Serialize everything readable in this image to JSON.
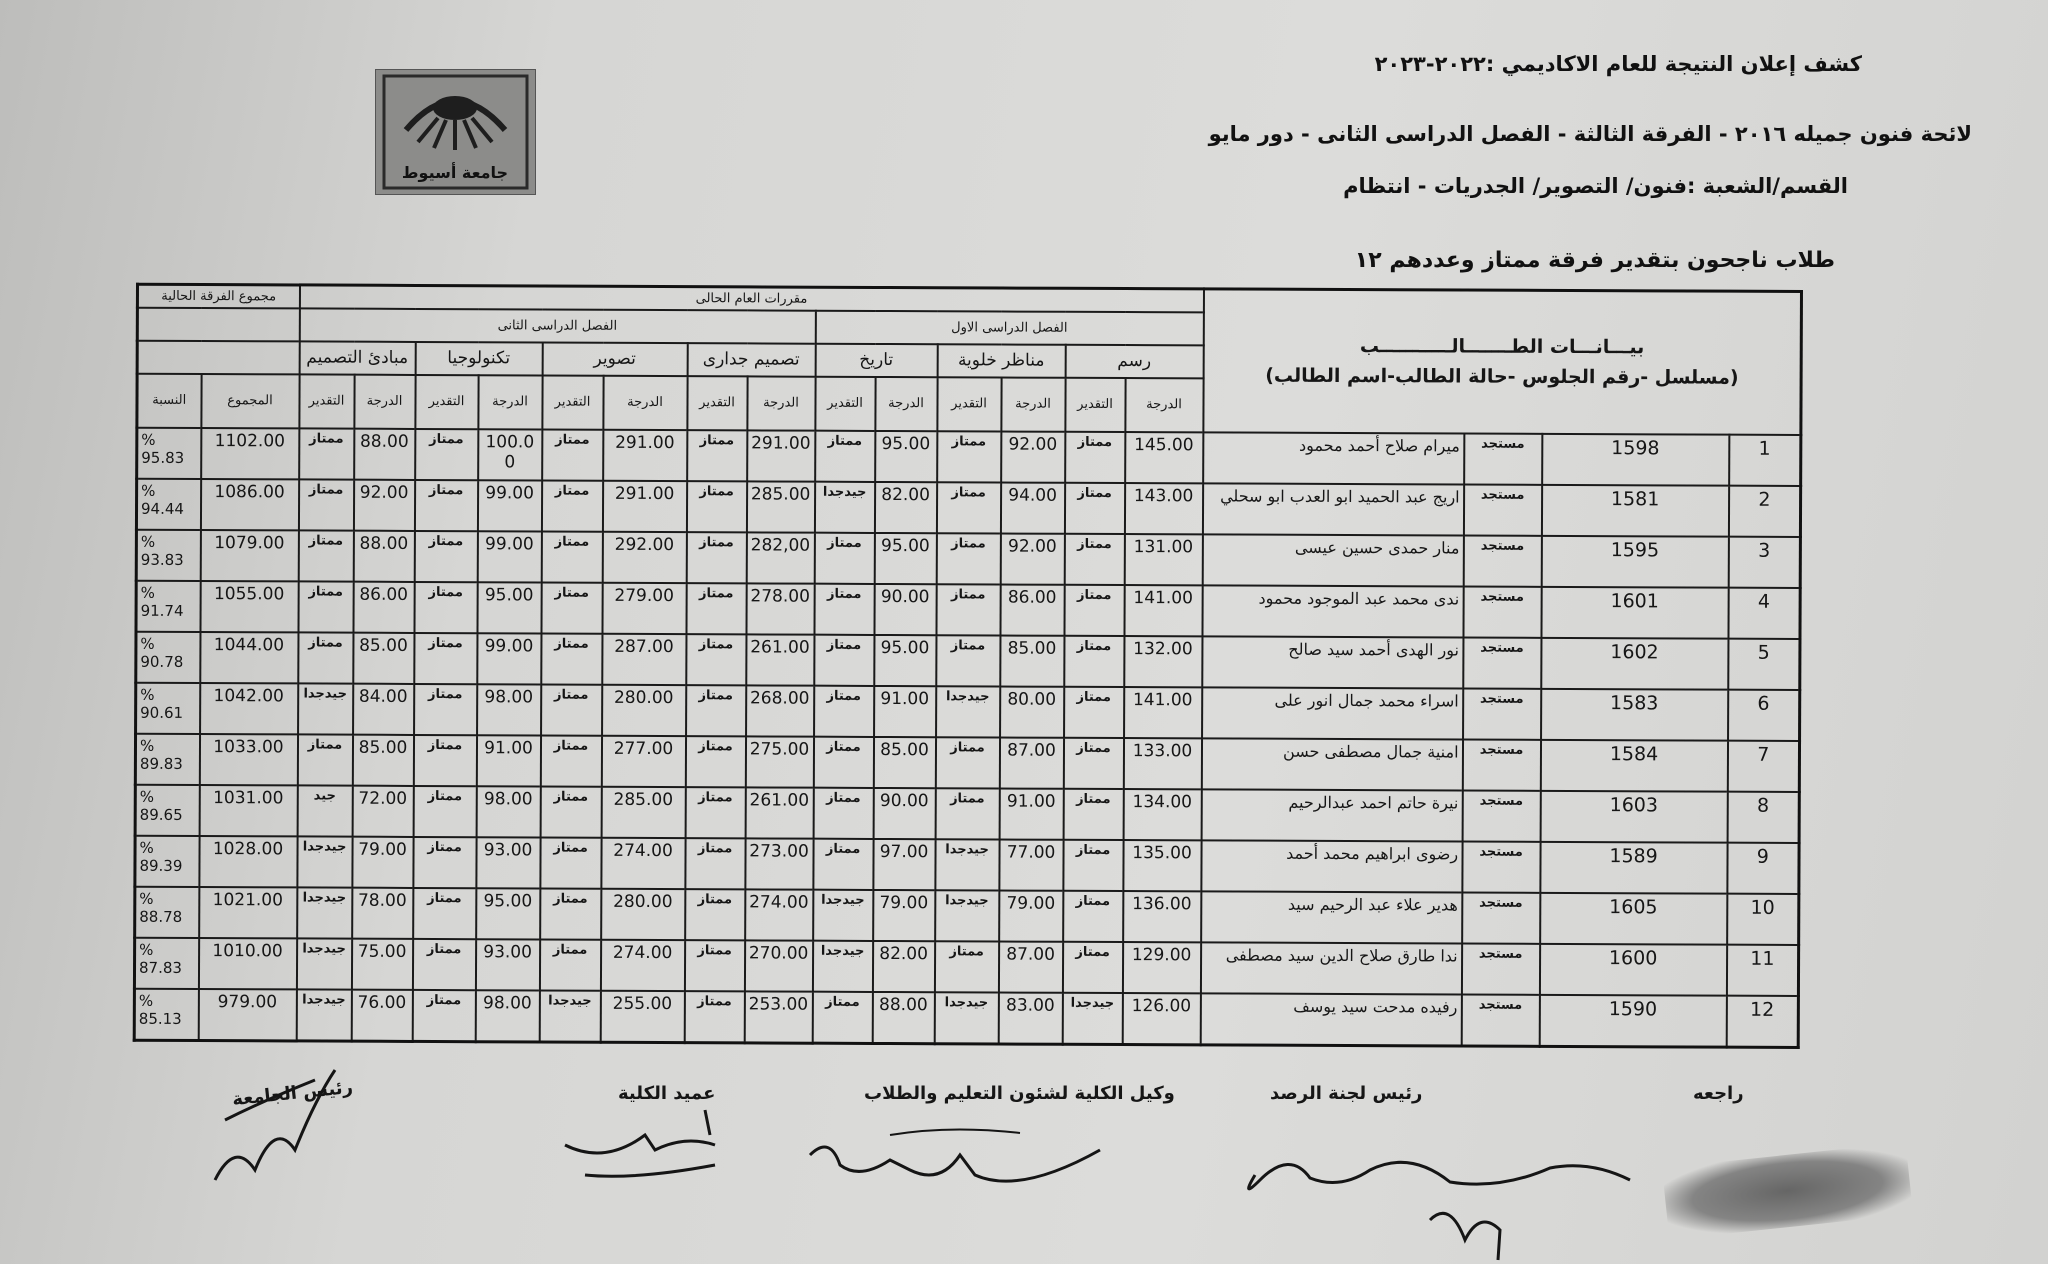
{
  "header": {
    "title": "كشف إعلان النتيجة للعام  الاكاديمي :٢٠٢٢-٢٠٢٣",
    "line2": "لائحة فنون جميله ٢٠١٦ - الفرقة الثالثة - الفصل الدراسى الثانى - دور مايو",
    "line3": "القسم/الشعبة :فنون/ التصوير/ الجدريات - انتظام",
    "line4": "طلاب ناجحون بتقدير فرقة ممتاز وعددهم ١٢"
  },
  "logo": {
    "text": "جامعة أسيوط"
  },
  "table": {
    "student_header": "بيـــانـــات الطـــــــالـــــــــــب",
    "student_subheader": "(مسلسل -رقم الجلوس -حالة الطالب-اسم الطالب)",
    "current_year_courses": "مقررات العام الحالى",
    "current_total": "مجموع الفرقة الحالية",
    "semester1": "الفصل الدراسى الاول",
    "semester2": "الفصل الدراسى الثانى",
    "courses": [
      "رسم",
      "مناظر خلوية",
      "تاريخ",
      "تصميم جدارى",
      "تصوير",
      "تكنولوجيا",
      "مبادئ التصميم"
    ],
    "grade_label": "الدرجة",
    "estimate_label": "التقدير",
    "total_label": "المجموع",
    "percent_label": "النسبة"
  },
  "rows": [
    {
      "serial": "1",
      "seat": "1598",
      "status": "مستجد",
      "name": "ميرام صلاح أحمد محمود",
      "c": [
        [
          "145.00",
          "ممتاز"
        ],
        [
          "92.00",
          "ممتاز"
        ],
        [
          "95.00",
          "ممتاز"
        ],
        [
          "291.00",
          "ممتاز"
        ],
        [
          "291.00",
          "ممتاز"
        ],
        [
          "100.00",
          "ممتاز"
        ],
        [
          "88.00",
          "ممتاز"
        ]
      ],
      "total": "1102.00",
      "percent": "% 95.83"
    },
    {
      "serial": "2",
      "seat": "1581",
      "status": "مستجد",
      "name": "اريج عبد الحميد ابو العدب ابو سحلي",
      "c": [
        [
          "143.00",
          "ممتاز"
        ],
        [
          "94.00",
          "ممتاز"
        ],
        [
          "82.00",
          "جيدجدا"
        ],
        [
          "285.00",
          "ممتاز"
        ],
        [
          "291.00",
          "ممتاز"
        ],
        [
          "99.00",
          "ممتاز"
        ],
        [
          "92.00",
          "ممتاز"
        ]
      ],
      "total": "1086.00",
      "percent": "% 94.44"
    },
    {
      "serial": "3",
      "seat": "1595",
      "status": "مستجد",
      "name": "منار حمدى حسين عيسى",
      "c": [
        [
          "131.00",
          "ممتاز"
        ],
        [
          "92.00",
          "ممتاز"
        ],
        [
          "95.00",
          "ممتاز"
        ],
        [
          "282,00",
          "ممتاز"
        ],
        [
          "292.00",
          "ممتاز"
        ],
        [
          "99.00",
          "ممتاز"
        ],
        [
          "88.00",
          "ممتاز"
        ]
      ],
      "total": "1079.00",
      "percent": "% 93.83"
    },
    {
      "serial": "4",
      "seat": "1601",
      "status": "مستجد",
      "name": "ندى محمد عبد الموجود محمود",
      "c": [
        [
          "141.00",
          "ممتاز"
        ],
        [
          "86.00",
          "ممتاز"
        ],
        [
          "90.00",
          "ممتاز"
        ],
        [
          "278.00",
          "ممتاز"
        ],
        [
          "279.00",
          "ممتاز"
        ],
        [
          "95.00",
          "ممتاز"
        ],
        [
          "86.00",
          "ممتاز"
        ]
      ],
      "total": "1055.00",
      "percent": "% 91.74"
    },
    {
      "serial": "5",
      "seat": "1602",
      "status": "مستجد",
      "name": "نور الهدى أحمد سيد صالح",
      "c": [
        [
          "132.00",
          "ممتاز"
        ],
        [
          "85.00",
          "ممتاز"
        ],
        [
          "95.00",
          "ممتاز"
        ],
        [
          "261.00",
          "ممتاز"
        ],
        [
          "287.00",
          "ممتاز"
        ],
        [
          "99.00",
          "ممتاز"
        ],
        [
          "85.00",
          "ممتاز"
        ]
      ],
      "total": "1044.00",
      "percent": "% 90.78"
    },
    {
      "serial": "6",
      "seat": "1583",
      "status": "مستجد",
      "name": "اسراء محمد جمال انور على",
      "c": [
        [
          "141.00",
          "ممتاز"
        ],
        [
          "80.00",
          "جيدجدا"
        ],
        [
          "91.00",
          "ممتاز"
        ],
        [
          "268.00",
          "ممتاز"
        ],
        [
          "280.00",
          "ممتاز"
        ],
        [
          "98.00",
          "ممتاز"
        ],
        [
          "84.00",
          "جيدجدا"
        ]
      ],
      "total": "1042.00",
      "percent": "% 90.61"
    },
    {
      "serial": "7",
      "seat": "1584",
      "status": "مستجد",
      "name": "امنية جمال مصطفى حسن",
      "c": [
        [
          "133.00",
          "ممتاز"
        ],
        [
          "87.00",
          "ممتاز"
        ],
        [
          "85.00",
          "ممتاز"
        ],
        [
          "275.00",
          "ممتاز"
        ],
        [
          "277.00",
          "ممتاز"
        ],
        [
          "91.00",
          "ممتاز"
        ],
        [
          "85.00",
          "ممتاز"
        ]
      ],
      "total": "1033.00",
      "percent": "% 89.83"
    },
    {
      "serial": "8",
      "seat": "1603",
      "status": "مستجد",
      "name": "نيرة حاتم احمد عبدالرحيم",
      "c": [
        [
          "134.00",
          "ممتاز"
        ],
        [
          "91.00",
          "ممتاز"
        ],
        [
          "90.00",
          "ممتاز"
        ],
        [
          "261.00",
          "ممتاز"
        ],
        [
          "285.00",
          "ممتاز"
        ],
        [
          "98.00",
          "ممتاز"
        ],
        [
          "72.00",
          "جيد"
        ]
      ],
      "total": "1031.00",
      "percent": "% 89.65"
    },
    {
      "serial": "9",
      "seat": "1589",
      "status": "مستجد",
      "name": "رضوى ابراهيم محمد أحمد",
      "c": [
        [
          "135.00",
          "ممتاز"
        ],
        [
          "77.00",
          "جيدجدا"
        ],
        [
          "97.00",
          "ممتاز"
        ],
        [
          "273.00",
          "ممتاز"
        ],
        [
          "274.00",
          "ممتاز"
        ],
        [
          "93.00",
          "ممتاز"
        ],
        [
          "79.00",
          "جيدجدا"
        ]
      ],
      "total": "1028.00",
      "percent": "% 89.39"
    },
    {
      "serial": "10",
      "seat": "1605",
      "status": "مستجد",
      "name": "هدير علاء عبد الرحيم سيد",
      "c": [
        [
          "136.00",
          "ممتاز"
        ],
        [
          "79.00",
          "جيدجدا"
        ],
        [
          "79.00",
          "جيدجدا"
        ],
        [
          "274.00",
          "ممتاز"
        ],
        [
          "280.00",
          "ممتاز"
        ],
        [
          "95.00",
          "ممتاز"
        ],
        [
          "78.00",
          "جيدجدا"
        ]
      ],
      "total": "1021.00",
      "percent": "% 88.78"
    },
    {
      "serial": "11",
      "seat": "1600",
      "status": "مستجد",
      "name": "ندا طارق صلاح الدين سيد مصطفى",
      "c": [
        [
          "129.00",
          "ممتاز"
        ],
        [
          "87.00",
          "ممتاز"
        ],
        [
          "82.00",
          "جيدجدا"
        ],
        [
          "270.00",
          "ممتاز"
        ],
        [
          "274.00",
          "ممتاز"
        ],
        [
          "93.00",
          "ممتاز"
        ],
        [
          "75.00",
          "جيدجدا"
        ]
      ],
      "total": "1010.00",
      "percent": "% 87.83"
    },
    {
      "serial": "12",
      "seat": "1590",
      "status": "مستجد",
      "name": "رفيده مدحت سيد يوسف",
      "c": [
        [
          "126.00",
          "جيدجدا"
        ],
        [
          "83.00",
          "جيدجدا"
        ],
        [
          "88.00",
          "ممتاز"
        ],
        [
          "253.00",
          "ممتاز"
        ],
        [
          "255.00",
          "جيدجدا"
        ],
        [
          "98.00",
          "ممتاز"
        ],
        [
          "76.00",
          "جيدجدا"
        ]
      ],
      "total": "979.00",
      "percent": "% 85.13"
    }
  ],
  "signatures": {
    "reviewer": "راجعه",
    "monitoring_head": "رئيس لجنة الرصد",
    "vice_dean": "وكيل الكلية لشئون التعليم والطلاب",
    "dean": "عميد الكلية",
    "president": "رئيس الجامعة"
  }
}
